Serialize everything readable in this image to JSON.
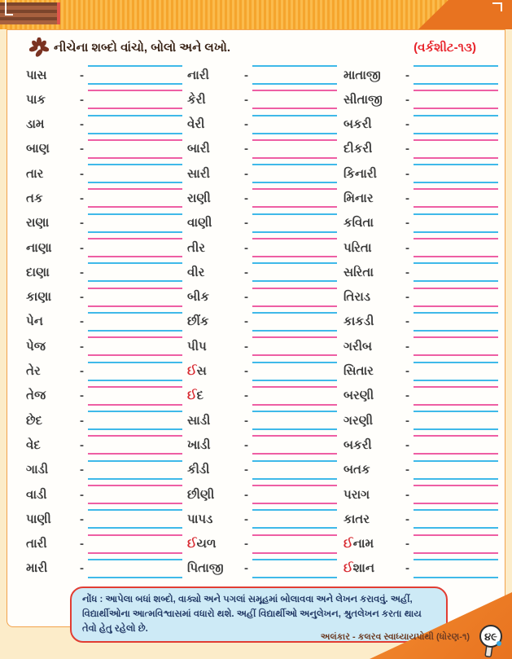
{
  "page": {
    "title": "નીચેના શબ્દો વાંચો, બોલો અને લખો.",
    "worksheet_label": "(વર્કશીટ-૧૩)",
    "dash": "-"
  },
  "columns": [
    {
      "words": [
        "પાસ",
        "પાક",
        "ડામ",
        "બાણ",
        "તાર",
        "તક",
        "રાણા",
        "નાણા",
        "દાણા",
        "કાણા",
        "પેન",
        "પેજ",
        "તેર",
        "તેજ",
        "છેદ",
        "વેદ",
        "ગાડી",
        "વાડી",
        "પાણી",
        "તારી",
        "મારી"
      ]
    },
    {
      "words": [
        "નારી",
        "કેરી",
        "વેરી",
        "બારી",
        "સારી",
        "રાણી",
        "વાણી",
        "તીર",
        "વીર",
        "બીક",
        "છીંક",
        "પીપ",
        "ઈસ",
        "ઈદ",
        "સાડી",
        "ખાડી",
        "કીડી",
        "છીણી",
        "પાપડ",
        "ઈયળ",
        "પિતાજી"
      ]
    },
    {
      "words": [
        "માતાજી",
        "સીતાજી",
        "બકરી",
        "દીકરી",
        "કિનારી",
        "મિનાર",
        "કવિતા",
        "પરિતા",
        "સરિતા",
        "તિરાડ",
        "કાકડી",
        "ગરીબ",
        "સિતાર",
        "બરણી",
        "ગરણી",
        "બકરી",
        "બતક",
        "પરાગ",
        "કાતર",
        "ઈનામ",
        "ઈશાન"
      ]
    }
  ],
  "note": {
    "text": "નોંધ : આપેલા બધાં શબ્દો, વાક્યો અને પગલાં સમૂહમાં બોલાવવા અને લેખન કરાવવું. અહીં, વિદ્યાર્થીઓના આત્મવિશ્વાસમાં વધારો થશે. અહીં વિદ્યાર્થીઓ અનુલેખન, શ્રુતલેખન કરતા થાય તેવો હેતુ રહેલો છે."
  },
  "footer": {
    "text": "અલંકાર - કલરવ સ્વાધ્યાયપોથી (ધોરણ-૧)",
    "page_number": "૪૯"
  },
  "colors": {
    "line_cyan": "#3fb9e9",
    "line_pink": "#ee5fa4",
    "accent_red": "#d8282f",
    "band_orange": "#fbbb4d",
    "dark_orange": "#e87320",
    "note_bg": "#cdeaf6",
    "note_border": "#e13d33"
  }
}
